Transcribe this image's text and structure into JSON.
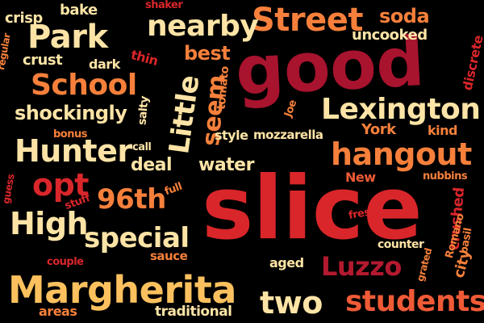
{
  "words": [
    {
      "text": "slice"
    },
    {
      "text": "good"
    },
    {
      "text": "Street"
    },
    {
      "text": "Lexington"
    },
    {
      "text": "Margherita"
    },
    {
      "text": "hangout"
    },
    {
      "text": "students"
    },
    {
      "text": "Hunter"
    },
    {
      "text": "nearby"
    },
    {
      "text": "School"
    },
    {
      "text": "Park"
    },
    {
      "text": "special"
    },
    {
      "text": "High"
    },
    {
      "text": "Luzzo"
    },
    {
      "text": "two"
    },
    {
      "text": "96th"
    },
    {
      "text": "opt"
    },
    {
      "text": "Little"
    },
    {
      "text": "seem"
    },
    {
      "text": "shockingly"
    },
    {
      "text": "deal"
    },
    {
      "text": "water"
    },
    {
      "text": "best"
    },
    {
      "text": "soda"
    },
    {
      "text": "uncooked"
    },
    {
      "text": "crust"
    },
    {
      "text": "bake"
    },
    {
      "text": "crisp"
    },
    {
      "text": "dark"
    },
    {
      "text": "thin"
    },
    {
      "text": "shaker"
    },
    {
      "text": "regular"
    },
    {
      "text": "discrete"
    },
    {
      "text": "tomato"
    },
    {
      "text": "salty"
    },
    {
      "text": "bonus"
    },
    {
      "text": "call"
    },
    {
      "text": "style"
    },
    {
      "text": "mozzarella"
    },
    {
      "text": "Joe"
    },
    {
      "text": "York"
    },
    {
      "text": "kind"
    },
    {
      "text": "New"
    },
    {
      "text": "nubbins"
    },
    {
      "text": "crushed"
    },
    {
      "text": "fresh"
    },
    {
      "text": "Romano"
    },
    {
      "text": "basil"
    },
    {
      "text": "city"
    },
    {
      "text": "grated"
    },
    {
      "text": "counter"
    },
    {
      "text": "aged"
    },
    {
      "text": "sauce"
    },
    {
      "text": "full"
    },
    {
      "text": "stuff"
    },
    {
      "text": "guess"
    },
    {
      "text": "couple"
    },
    {
      "text": "areas"
    },
    {
      "text": "traditional"
    }
  ]
}
